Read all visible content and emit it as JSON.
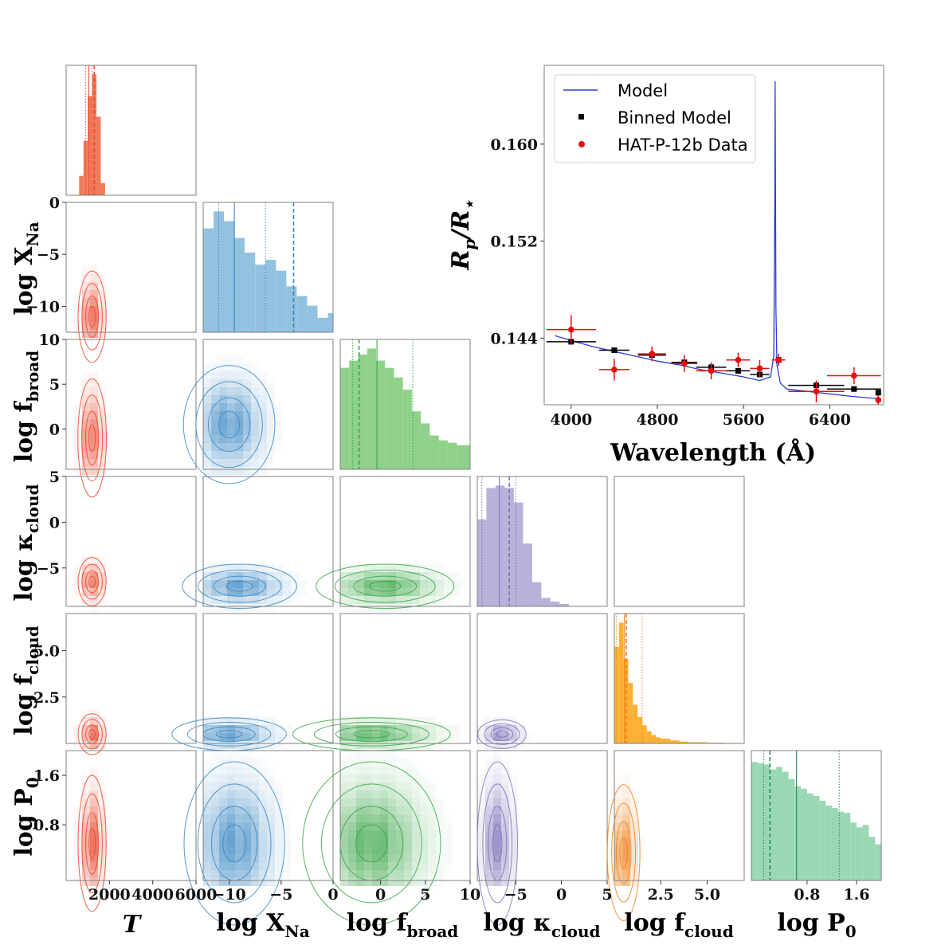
{
  "chart_data": [
    {
      "type": "corner",
      "params": [
        {
          "key": "T",
          "label": "T",
          "range": [
            0,
            6000
          ],
          "ticks": [
            2000,
            4000,
            6000
          ],
          "tick_labels": [
            "2000",
            "4000",
            "6000"
          ],
          "color": "#e8492f",
          "hist_color": "#f07b5b"
        },
        {
          "key": "logXNa",
          "label": "log X",
          "label_sub": "Na",
          "range": [
            -12.5,
            0
          ],
          "ticks": [
            -10,
            -5,
            0
          ],
          "tick_labels": [
            "−10",
            "−5",
            "0"
          ],
          "color": "#3a87c2",
          "hist_color": "#92c2df"
        },
        {
          "key": "logfbroad",
          "label": "log f",
          "label_sub": "broad",
          "range": [
            -4.5,
            10
          ],
          "ticks": [
            0,
            5,
            10
          ],
          "tick_labels": [
            "0",
            "5",
            "10"
          ],
          "color": "#3aa548",
          "hist_color": "#8fd18a"
        },
        {
          "key": "logkcloud",
          "label": "log κ",
          "label_sub": "cloud",
          "range": [
            -9.2,
            5
          ],
          "ticks": [
            -5,
            0,
            5
          ],
          "tick_labels": [
            "−5",
            "0",
            "5"
          ],
          "color": "#7f73b9",
          "hist_color": "#b8b1d9"
        },
        {
          "key": "logfcloud",
          "label": "log f",
          "label_sub": "cloud",
          "range": [
            0,
            7
          ],
          "ticks": [
            2.5,
            5.0
          ],
          "tick_labels": [
            "2.5",
            "5.0"
          ],
          "color": "#f0821d",
          "hist_color": "#fbb033"
        },
        {
          "key": "logP0",
          "label": "log P",
          "label_sub": "0",
          "range": [
            -0.1,
            2.0
          ],
          "ticks": [
            0.8,
            1.6
          ],
          "tick_labels": [
            "0.8",
            "1.6"
          ],
          "color": "#2a8a57",
          "hist_color": "#99d8b3"
        }
      ],
      "row_ticks": [
        {
          "ticks": [
            0,
            -5,
            -10
          ],
          "tick_labels": [
            "0",
            "−5",
            "−10"
          ]
        },
        {
          "ticks": [
            10,
            5,
            0
          ],
          "tick_labels": [
            "10",
            "5",
            "0"
          ]
        },
        {
          "ticks": [
            5,
            0,
            -5
          ],
          "tick_labels": [
            "5",
            "0",
            "−5"
          ]
        },
        {
          "ticks": [
            5.0,
            2.5
          ],
          "tick_labels": [
            "5.0",
            "2.5"
          ]
        },
        {
          "ticks": [
            1.6,
            0.8
          ],
          "tick_labels": [
            "1.6",
            "0.8"
          ]
        }
      ],
      "histograms": [
        {
          "edges": [
            600,
            800,
            1000,
            1200,
            1400,
            1600,
            1800
          ],
          "counts": [
            0.16,
            0.45,
            0.82,
            1.0,
            0.65,
            0.1
          ],
          "truth": 1300,
          "quantiles": [
            900,
            1050,
            1200
          ]
        },
        {
          "edges": [
            -12.5,
            -11.5,
            -10.5,
            -9.5,
            -8.5,
            -7.5,
            -6.5,
            -5.5,
            -4.5,
            -3.5,
            -2.5,
            -1.5,
            -0.5,
            0
          ],
          "counts": [
            0.86,
            1.0,
            0.92,
            0.78,
            0.66,
            0.56,
            0.6,
            0.51,
            0.38,
            0.3,
            0.22,
            0.12,
            0.16
          ],
          "truth": -3.8,
          "quantiles": [
            -11.0,
            -9.5,
            -6.5
          ]
        },
        {
          "edges": [
            -4.5,
            -3.5,
            -2.5,
            -1.5,
            -0.5,
            0.5,
            1.5,
            2.5,
            3.5,
            4.5,
            5.5,
            6.5,
            7.5,
            8.5,
            10
          ],
          "counts": [
            0.84,
            0.9,
            0.95,
            1.0,
            0.9,
            0.84,
            0.76,
            0.66,
            0.48,
            0.38,
            0.28,
            0.24,
            0.22,
            0.2
          ],
          "truth": -2.4,
          "quantiles": [
            -3.1,
            -0.4,
            3.6
          ]
        },
        {
          "edges": [
            -9.2,
            -8.2,
            -7.2,
            -6.2,
            -5.2,
            -4.2,
            -3.2,
            -2.2,
            -1.2,
            -0.2,
            0.8
          ],
          "counts": [
            0.72,
            0.98,
            1.0,
            0.98,
            0.86,
            0.52,
            0.2,
            0.07,
            0.04,
            0.02
          ],
          "truth": -5.7,
          "quantiles": [
            -8.7,
            -6.8,
            -5.0
          ]
        },
        {
          "edges": [
            0,
            0.25,
            0.5,
            0.75,
            1.0,
            1.25,
            1.5,
            1.75,
            2.0,
            2.25,
            2.5,
            3.0,
            3.5,
            4.0,
            5.0,
            6.0
          ],
          "counts": [
            0.8,
            1.0,
            0.7,
            0.5,
            0.32,
            0.22,
            0.15,
            0.1,
            0.07,
            0.05,
            0.04,
            0.025,
            0.015,
            0.01,
            0.006
          ],
          "truth": 0.65,
          "quantiles": [
            0.1,
            0.55,
            1.5
          ]
        },
        {
          "edges": [
            -0.1,
            0.0,
            0.1,
            0.2,
            0.3,
            0.4,
            0.5,
            0.6,
            0.7,
            0.8,
            0.9,
            1.0,
            1.1,
            1.2,
            1.3,
            1.4,
            1.5,
            1.6,
            1.7,
            1.8,
            1.9,
            2.0
          ],
          "counts": [
            0.98,
            0.97,
            0.96,
            0.92,
            0.94,
            0.9,
            0.84,
            0.78,
            0.76,
            0.72,
            0.7,
            0.66,
            0.62,
            0.6,
            0.57,
            0.56,
            0.48,
            0.44,
            0.46,
            0.36,
            0.3
          ],
          "truth": 0.2,
          "quantiles": [
            0.1,
            0.63,
            1.32
          ]
        }
      ],
      "pairs": [
        {
          "row": 1,
          "col": 0,
          "center": [
            1200,
            -11.0
          ],
          "spread": [
            250,
            2.0
          ]
        },
        {
          "row": 2,
          "col": 0,
          "center": [
            1200,
            -1.0
          ],
          "spread": [
            300,
            3.0
          ]
        },
        {
          "row": 2,
          "col": 1,
          "center": [
            -10.0,
            0.5
          ],
          "spread": [
            2.0,
            3.0
          ]
        },
        {
          "row": 3,
          "col": 0,
          "center": [
            1200,
            -6.5
          ],
          "spread": [
            250,
            1.2
          ]
        },
        {
          "row": 3,
          "col": 1,
          "center": [
            -9.0,
            -7.0
          ],
          "spread": [
            2.5,
            1.1
          ]
        },
        {
          "row": 3,
          "col": 2,
          "center": [
            0.5,
            -7.0
          ],
          "spread": [
            3.5,
            1.1
          ]
        },
        {
          "row": 3,
          "col": 4,
          "center": [
            0,
            0
          ],
          "spread": [
            0,
            0
          ]
        },
        {
          "row": 4,
          "col": 0,
          "center": [
            1200,
            0.5
          ],
          "spread": [
            220,
            0.5
          ]
        },
        {
          "row": 4,
          "col": 1,
          "center": [
            -10.0,
            0.5
          ],
          "spread": [
            2.5,
            0.4
          ]
        },
        {
          "row": 4,
          "col": 2,
          "center": [
            -1.0,
            0.5
          ],
          "spread": [
            4.0,
            0.4
          ]
        },
        {
          "row": 4,
          "col": 3,
          "center": [
            -6.5,
            0.5
          ],
          "spread": [
            1.2,
            0.35
          ]
        },
        {
          "row": 5,
          "col": 0,
          "center": [
            1200,
            0.5
          ],
          "spread": [
            200,
            0.5
          ]
        },
        {
          "row": 5,
          "col": 1,
          "center": [
            -9.5,
            0.5
          ],
          "spread": [
            2.2,
            0.6
          ]
        },
        {
          "row": 5,
          "col": 2,
          "center": [
            -1.0,
            0.5
          ],
          "spread": [
            3.5,
            0.6
          ]
        },
        {
          "row": 5,
          "col": 3,
          "center": [
            -7.0,
            0.5
          ],
          "spread": [
            1.0,
            0.6
          ]
        },
        {
          "row": 5,
          "col": 4,
          "center": [
            0.5,
            0.35
          ],
          "spread": [
            0.4,
            0.5
          ]
        }
      ]
    },
    {
      "type": "line",
      "xlabel": "Wavelength (Å)",
      "ylabel": "R_p/R_⋆",
      "xlim": [
        3750,
        6900
      ],
      "ylim": [
        0.1385,
        0.1665
      ],
      "xticks": [
        4000,
        4800,
        5600,
        6400
      ],
      "yticks": [
        0.144,
        0.152,
        0.16
      ],
      "ytick_labels": [
        "0.144",
        "0.152",
        "0.160"
      ],
      "legend_position": "upper-left",
      "series": [
        {
          "name": "Model",
          "kind": "line",
          "color": "#2a3bd6",
          "x": [
            3850,
            4000,
            4200,
            4400,
            4600,
            4800,
            5000,
            5200,
            5400,
            5600,
            5750,
            5850,
            5880,
            5890,
            5893,
            5896,
            5900,
            5910,
            5940,
            6000,
            6200,
            6400,
            6600,
            6850
          ],
          "y": [
            0.1442,
            0.1438,
            0.1433,
            0.1429,
            0.1425,
            0.1421,
            0.1418,
            0.1414,
            0.1411,
            0.1408,
            0.1405,
            0.1408,
            0.1425,
            0.1555,
            0.1652,
            0.158,
            0.1465,
            0.1418,
            0.1403,
            0.1398,
            0.1396,
            0.1394,
            0.1392,
            0.139
          ]
        },
        {
          "name": "Binned Model",
          "kind": "markers",
          "marker": "square",
          "color": "#000000",
          "x": [
            4000,
            4400,
            4750,
            5050,
            5300,
            5550,
            5750,
            5925,
            6275,
            6625,
            6850
          ],
          "y": [
            0.1437,
            0.143,
            0.1426,
            0.142,
            0.1416,
            0.1413,
            0.141,
            0.1422,
            0.1401,
            0.1398,
            0.1395
          ],
          "xerr": [
            230,
            140,
            130,
            120,
            140,
            110,
            90,
            60,
            260,
            250,
            0
          ]
        },
        {
          "name": "HAT-P-12b Data",
          "kind": "errorbar",
          "marker": "circle",
          "color": "#e80c0c",
          "x": [
            4000,
            4400,
            4750,
            5050,
            5300,
            5550,
            5750,
            5925,
            6275,
            6625,
            6850
          ],
          "y": [
            0.1447,
            0.1414,
            0.1427,
            0.1419,
            0.1413,
            0.1422,
            0.1415,
            0.1422,
            0.1396,
            0.1409,
            0.1389
          ],
          "xerr": [
            230,
            140,
            130,
            120,
            140,
            110,
            90,
            60,
            260,
            250,
            0
          ],
          "yerr": [
            0.0012,
            0.0009,
            0.0006,
            0.0007,
            0.0007,
            0.0006,
            0.0007,
            0.0005,
            0.0009,
            0.0007,
            0.0004
          ]
        }
      ]
    }
  ],
  "corner_labels": {
    "T": "T",
    "logXNa_main": "log X",
    "logXNa_sub": "Na",
    "logfbroad_main": "log f",
    "logfbroad_sub": "broad",
    "logkcloud_main": "log κ",
    "logkcloud_sub": "cloud",
    "logfcloud_main": "log f",
    "logfcloud_sub": "cloud",
    "logP0_main": "log P",
    "logP0_sub": "0"
  },
  "spectrum_labels": {
    "xlabel": "Wavelength (Å)",
    "ylabel_main": "R",
    "ylabel_p": "p",
    "ylabel_slash": "/R",
    "ylabel_star": "⋆",
    "legend": [
      "Model",
      "Binned Model",
      "HAT-P-12b Data"
    ]
  }
}
